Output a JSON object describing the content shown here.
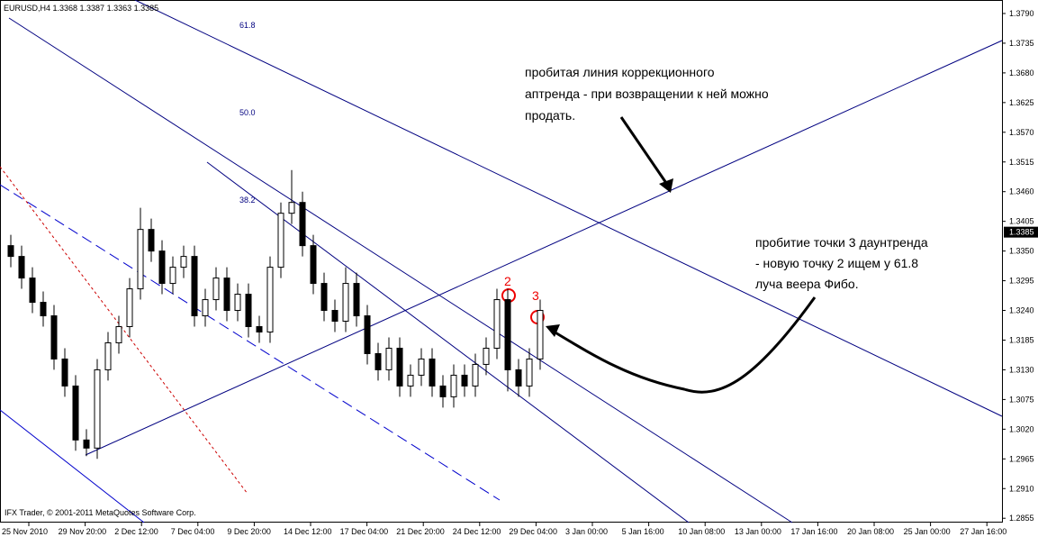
{
  "header": "EURUSD,H4  1.3368 1.3387 1.3363 1.3385",
  "copyright": "IFX Trader, © 2001-2011 MetaQuotes Software Corp.",
  "fibo_levels": [
    "61.8",
    "50.0",
    "38.2"
  ],
  "point_labels": [
    "2",
    "3"
  ],
  "note_top": [
    "пробитая линия коррекционного",
    "аптренда - при возвращении к ней можно",
    "продать."
  ],
  "note_right": [
    "пробитие точки 3 даунтренда",
    "- новую точку 2 ищем у 61.8",
    "луча веера Фибо."
  ],
  "chart_data": {
    "type": "candlestick",
    "xtick_labels": [
      "25 Nov 2010",
      "29 Nov 20:00",
      "2 Dec 12:00",
      "7 Dec 04:00",
      "9 Dec 20:00",
      "14 Dec 12:00",
      "17 Dec 04:00",
      "21 Dec 20:00",
      "24 Dec 12:00",
      "29 Dec 04:00",
      "3 Jan 00:00",
      "5 Jan 16:00",
      "10 Jan 08:00",
      "13 Jan 00:00",
      "17 Jan 16:00",
      "20 Jan 08:00",
      "25 Jan 00:00",
      "27 Jan 16:00"
    ],
    "open": [
      1.336,
      1.334,
      1.33,
      1.3255,
      1.323,
      1.315,
      1.31,
      1.3,
      1.2985,
      1.313,
      1.318,
      1.321,
      1.328,
      1.339,
      1.335,
      1.329,
      1.332,
      1.334,
      1.323,
      1.326,
      1.33,
      1.324,
      1.327,
      1.321,
      1.32,
      1.332,
      1.342,
      1.344,
      1.336,
      1.329,
      1.324,
      1.322,
      1.329,
      1.323,
      1.316,
      1.313,
      1.317,
      1.31,
      1.312,
      1.315,
      1.31,
      1.308,
      1.312,
      1.31,
      1.314,
      1.317,
      1.326,
      1.313,
      1.31,
      1.315
    ],
    "high": [
      1.338,
      1.336,
      1.332,
      1.3275,
      1.325,
      1.317,
      1.312,
      1.302,
      1.315,
      1.32,
      1.323,
      1.33,
      1.343,
      1.341,
      1.337,
      1.334,
      1.336,
      1.336,
      1.328,
      1.332,
      1.332,
      1.329,
      1.329,
      1.323,
      1.334,
      1.344,
      1.35,
      1.346,
      1.338,
      1.331,
      1.326,
      1.332,
      1.331,
      1.325,
      1.318,
      1.319,
      1.319,
      1.314,
      1.317,
      1.317,
      1.312,
      1.314,
      1.314,
      1.316,
      1.319,
      1.328,
      1.328,
      1.315,
      1.317,
      1.326
    ],
    "low": [
      1.332,
      1.328,
      1.3235,
      1.321,
      1.313,
      1.308,
      1.298,
      1.297,
      1.2965,
      1.311,
      1.316,
      1.319,
      1.326,
      1.333,
      1.327,
      1.327,
      1.33,
      1.321,
      1.321,
      1.324,
      1.322,
      1.322,
      1.319,
      1.318,
      1.318,
      1.33,
      1.34,
      1.334,
      1.327,
      1.322,
      1.32,
      1.32,
      1.321,
      1.314,
      1.311,
      1.311,
      1.308,
      1.308,
      1.31,
      1.308,
      1.306,
      1.306,
      1.308,
      1.308,
      1.312,
      1.315,
      1.309,
      1.308,
      1.308,
      1.313
    ],
    "close": [
      1.334,
      1.33,
      1.3255,
      1.323,
      1.315,
      1.31,
      1.3,
      1.2985,
      1.313,
      1.318,
      1.321,
      1.328,
      1.339,
      1.335,
      1.329,
      1.332,
      1.334,
      1.323,
      1.326,
      1.33,
      1.324,
      1.327,
      1.321,
      1.32,
      1.332,
      1.342,
      1.344,
      1.336,
      1.329,
      1.324,
      1.322,
      1.329,
      1.323,
      1.316,
      1.313,
      1.317,
      1.31,
      1.312,
      1.315,
      1.31,
      1.308,
      1.312,
      1.31,
      1.314,
      1.317,
      1.326,
      1.313,
      1.31,
      1.315,
      1.324
    ],
    "color": "#000000",
    "ylim": [
      1.2847,
      1.3815
    ],
    "yticks": [
      {
        "value": 1.379,
        "label": "1.3790"
      },
      {
        "value": 1.3735,
        "label": "1.3735"
      },
      {
        "value": 1.368,
        "label": "1.3680"
      },
      {
        "value": 1.3625,
        "label": "1.3625"
      },
      {
        "value": 1.357,
        "label": "1.3570"
      },
      {
        "value": 1.3515,
        "label": "1.3515"
      },
      {
        "value": 1.346,
        "label": "1.3460"
      },
      {
        "value": 1.3405,
        "label": "1.3405"
      },
      {
        "value": 1.335,
        "label": "1.3350"
      },
      {
        "value": 1.3295,
        "label": "1.3295"
      },
      {
        "value": 1.324,
        "label": "1.3240"
      },
      {
        "value": 1.3185,
        "label": "1.3185"
      },
      {
        "value": 1.313,
        "label": "1.3130"
      },
      {
        "value": 1.3075,
        "label": "1.3075"
      },
      {
        "value": 1.302,
        "label": "1.3020"
      },
      {
        "value": 1.2965,
        "label": "1.2965"
      },
      {
        "value": 1.291,
        "label": "1.2910"
      },
      {
        "value": 1.2855,
        "label": "1.2855"
      }
    ],
    "current_price": {
      "value": 1.3385,
      "label": "1.3385"
    },
    "grid": false
  }
}
